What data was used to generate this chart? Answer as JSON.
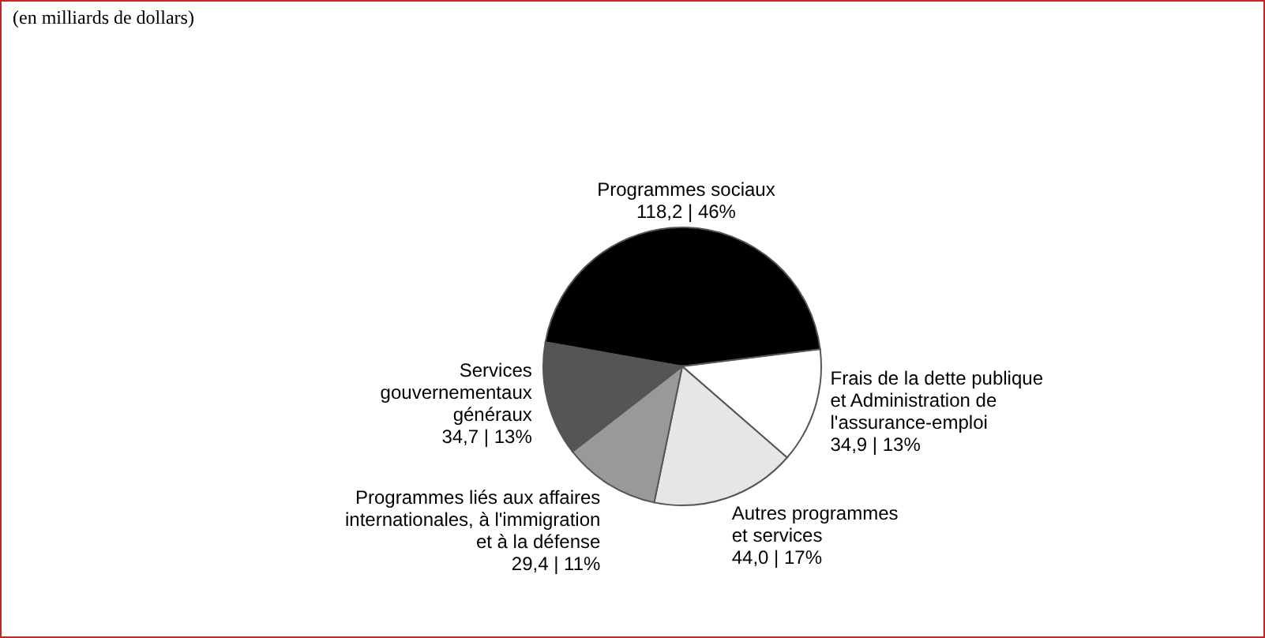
{
  "chart_data": {
    "type": "pie",
    "annotations": [
      "(en milliards de dollars)"
    ],
    "categories": [
      "Programmes sociaux",
      "Frais de la dette publique\net Administration de\nl'assurance-emploi",
      "Autres programmes\net services",
      "Programmes liés aux affaires\ninternationales, à l'immigration\net à la défense",
      "Services\ngouvernementaux\ngénéraux"
    ],
    "values": [
      118.2,
      34.9,
      44.0,
      29.4,
      34.7
    ],
    "value_labels": [
      "118,2 | 46%",
      "34,9 | 13%",
      "44,0 | 17%",
      "29,4 | 11%",
      "34,7 | 13%"
    ],
    "colors": [
      "#000000",
      "#ffffff",
      "#e6e6e6",
      "#999999",
      "#555555"
    ]
  }
}
